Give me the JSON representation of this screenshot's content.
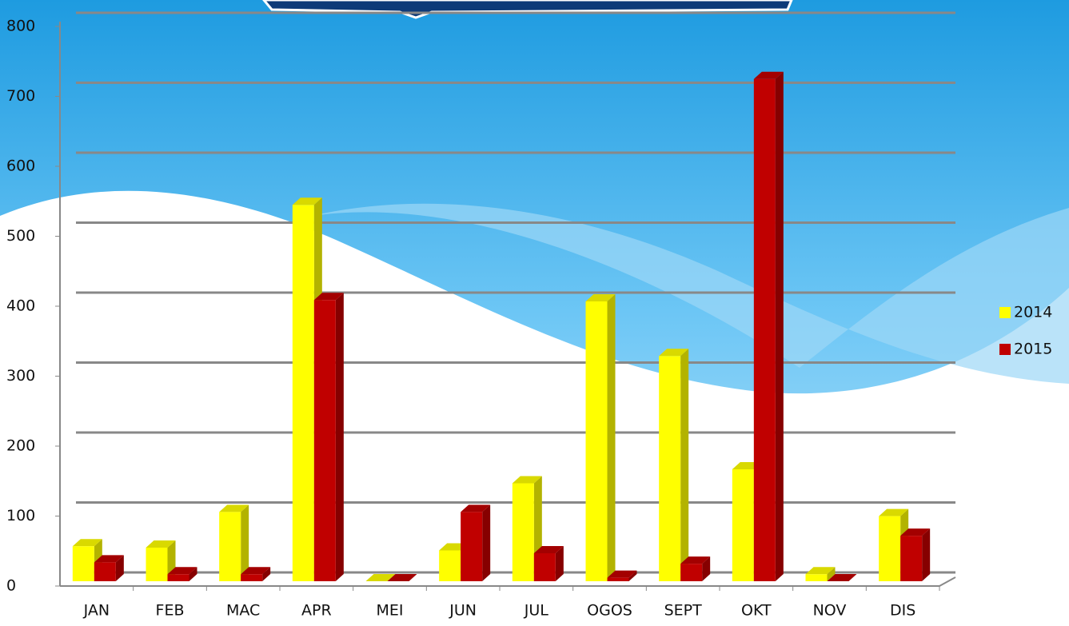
{
  "chart_data": {
    "type": "bar3d",
    "categories": [
      "JAN",
      "FEB",
      "MAC",
      "APR",
      "MEI",
      "JUN",
      "JUL",
      "OGOS",
      "SEPT",
      "OKT",
      "NOV",
      "DIS"
    ],
    "series": [
      {
        "name": "2014",
        "color": "#ffff00",
        "values": [
          50,
          48,
          99,
          538,
          0,
          44,
          140,
          400,
          322,
          160,
          10,
          93
        ]
      },
      {
        "name": "2015",
        "color": "#c00000",
        "values": [
          27,
          10,
          10,
          402,
          0,
          99,
          40,
          5,
          25,
          718,
          0,
          65
        ]
      }
    ],
    "ylim": [
      0,
      800
    ],
    "yticks": [
      0,
      100,
      200,
      300,
      400,
      500,
      600,
      700,
      800
    ],
    "grid": true,
    "legend": "right"
  }
}
